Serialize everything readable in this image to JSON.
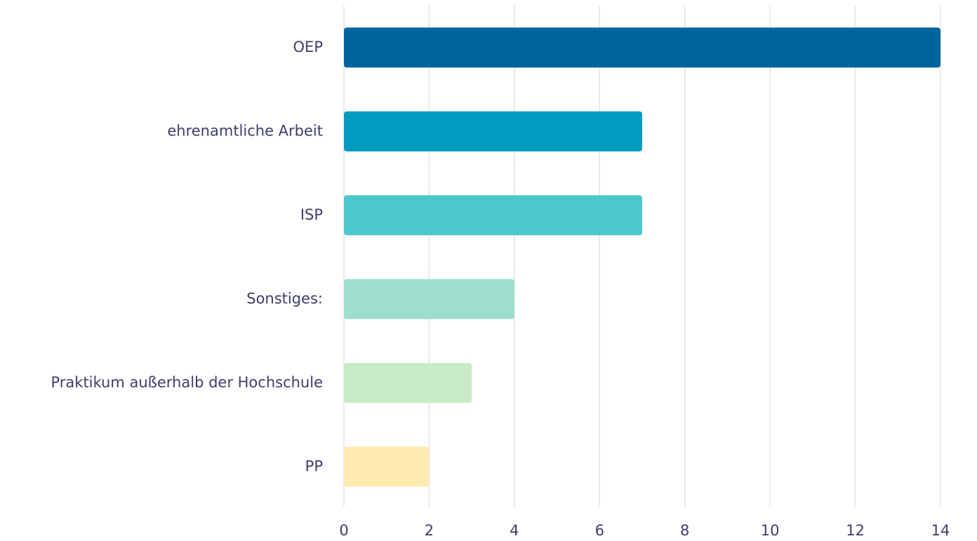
{
  "chart_data": {
    "type": "bar",
    "orientation": "horizontal",
    "categories": [
      "OEP",
      "ehrenamtliche Arbeit",
      "ISP",
      "Sonstiges:",
      "Praktikum außerhalb der Hochschule",
      "PP"
    ],
    "values": [
      14,
      7,
      7,
      4,
      3,
      2
    ],
    "colors": [
      "#00659e",
      "#009bbf",
      "#4bc8cb",
      "#9ddfcc",
      "#c8ebc6",
      "#fdebb0"
    ],
    "xlim": [
      0,
      14
    ],
    "xticks": [
      0,
      2,
      4,
      6,
      8,
      10,
      12,
      14
    ],
    "grid": true
  }
}
